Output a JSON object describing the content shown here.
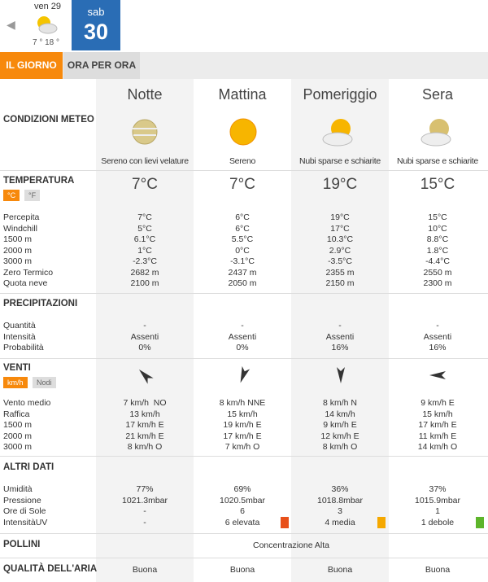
{
  "date_nav": {
    "prev": {
      "day": "ven 29",
      "temps": "7 ° 18 °"
    },
    "current": {
      "weekday": "sab",
      "day": "30"
    }
  },
  "tabs": [
    "IL GIORNO",
    "ORA PER ORA"
  ],
  "periods": [
    "Notte",
    "Mattina",
    "Pomeriggio",
    "Sera"
  ],
  "conditions": {
    "title": "CONDIZIONI METEO",
    "values": [
      "Sereno con lievi velature",
      "Sereno",
      "Nubi sparse e schiarite",
      "Nubi sparse e schiarite"
    ]
  },
  "sections": [
    {
      "title": "TEMPERATURA",
      "toggles": [
        "°C",
        "°F"
      ],
      "main": [
        "7°C",
        "7°C",
        "19°C",
        "15°C"
      ],
      "rows": [
        {
          "label": "Percepita",
          "values": [
            "7°C",
            "6°C",
            "19°C",
            "15°C"
          ]
        },
        {
          "label": "Windchill",
          "values": [
            "5°C",
            "6°C",
            "17°C",
            "10°C"
          ]
        },
        {
          "label": "1500 m",
          "values": [
            "6.1°C",
            "5.5°C",
            "10.3°C",
            "8.8°C"
          ]
        },
        {
          "label": "2000 m",
          "values": [
            "1°C",
            "0°C",
            "2.9°C",
            "1.8°C"
          ]
        },
        {
          "label": "3000 m",
          "values": [
            "-2.3°C",
            "-3.1°C",
            "-3.5°C",
            "-4.4°C"
          ]
        },
        {
          "label": "Zero Termico",
          "values": [
            "2682 m",
            "2437 m",
            "2355 m",
            "2550 m"
          ]
        },
        {
          "label": "Quota neve",
          "values": [
            "2100 m",
            "2050 m",
            "2150 m",
            "2300 m"
          ]
        }
      ]
    },
    {
      "title": "PRECIPITAZIONI",
      "rows": [
        {
          "label": "Quantità",
          "values": [
            "-",
            "-",
            "-",
            "-"
          ]
        },
        {
          "label": "Intensità",
          "values": [
            "Assenti",
            "Assenti",
            "Assenti",
            "Assenti"
          ]
        },
        {
          "label": "Probabilità",
          "values": [
            "0%",
            "0%",
            "16%",
            "16%"
          ]
        }
      ]
    },
    {
      "title": "VENTI",
      "toggles": [
        "km/h",
        "Nodi"
      ],
      "rows": [
        {
          "label": "Vento medio",
          "values": [
            "7 km/h  NO",
            "8 km/h NNE",
            "8 km/h N",
            "9 km/h E"
          ]
        },
        {
          "label": "Raffica",
          "values": [
            "13 km/h",
            "15 km/h",
            "14 km/h",
            "15 km/h"
          ]
        },
        {
          "label": "1500 m",
          "values": [
            "17 km/h E",
            "19 km/h E",
            "9 km/h E",
            "17 km/h E"
          ]
        },
        {
          "label": "2000 m",
          "values": [
            "21 km/h E",
            "17 km/h E",
            "12 km/h E",
            "11 km/h E"
          ]
        },
        {
          "label": "3000 m",
          "values": [
            "8 km/h O",
            "7 km/h O",
            "8 km/h O",
            "14 km/h O"
          ]
        }
      ]
    },
    {
      "title": "ALTRI DATI",
      "rows": [
        {
          "label": "Umidità",
          "values": [
            "77%",
            "69%",
            "36%",
            "37%"
          ]
        },
        {
          "label": "Pressione",
          "values": [
            "1021.3mbar",
            "1020.5mbar",
            "1018.8mbar",
            "1015.9mbar"
          ]
        },
        {
          "label": "Ore di Sole",
          "values": [
            "-",
            "6",
            "3",
            "1"
          ]
        },
        {
          "label": "IntensitàUV",
          "values": [
            "-",
            "6 elevata",
            "4 media",
            "1 debole"
          ]
        }
      ]
    }
  ],
  "pollini": {
    "title": "POLLINI",
    "value": "Concentrazione Alta"
  },
  "air_quality": {
    "title": "QUALITÀ DELL'ARIA",
    "values": [
      "Buona",
      "Buona",
      "Buona",
      "Buona"
    ]
  }
}
